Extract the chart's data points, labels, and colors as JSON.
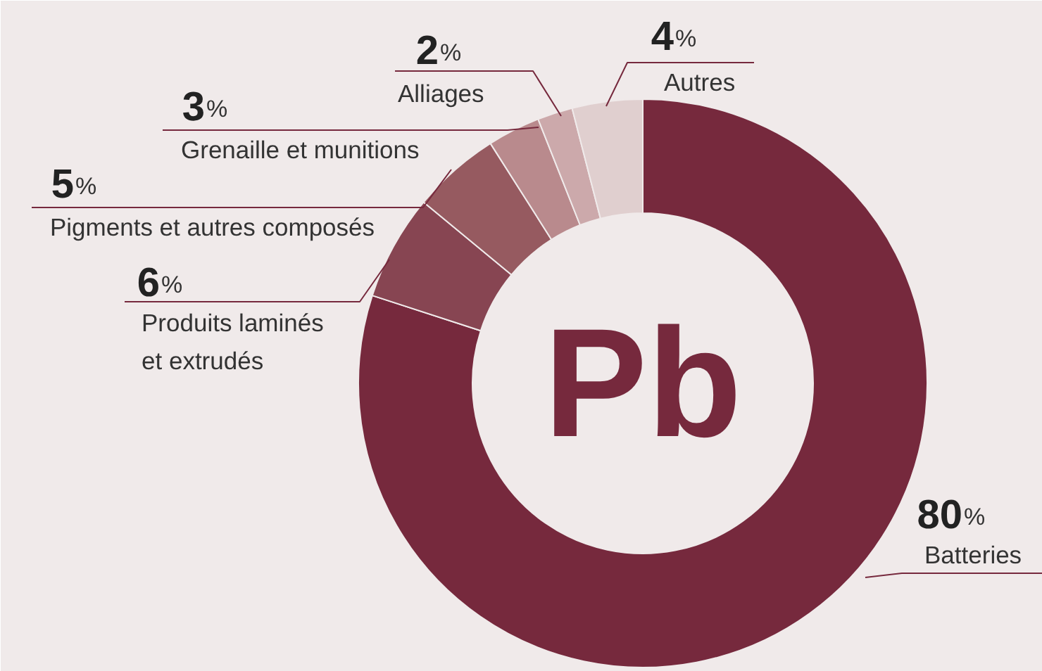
{
  "chart_data": {
    "type": "donut",
    "categories": [
      "Batteries",
      "Produits laminés\net extrudés",
      "Pigments et autres composés",
      "Grenaille et munitions",
      "Alliages",
      "Autres"
    ],
    "values": [
      80,
      6,
      5,
      3,
      2,
      4
    ],
    "colors": [
      "#76293d",
      "#874552",
      "#965a60",
      "#b98a8d",
      "#cca9ab",
      "#e0cfcf"
    ],
    "value_labels": [
      "80%",
      "6%",
      "5%",
      "3%",
      "2%",
      "4%"
    ],
    "annotations": [
      "Pb"
    ]
  }
}
